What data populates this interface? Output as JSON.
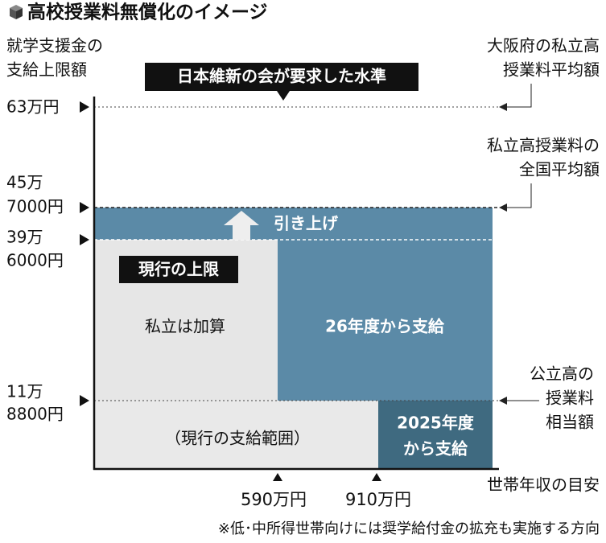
{
  "title": "高校授業料無償化のイメージ",
  "y_axis_label": [
    "就学支援金の",
    "支給上限額"
  ],
  "y_labels": [
    [
      "63万円"
    ],
    [
      "45万",
      "7000円"
    ],
    [
      "39万",
      "6000円"
    ],
    [
      "11万",
      "8800円"
    ]
  ],
  "right_notes": [
    [
      "大阪府の私立高",
      "授業料平均額"
    ],
    [
      "私立高授業料の",
      "全国平均額"
    ],
    [
      "公立高の",
      "授業料",
      "相当額"
    ]
  ],
  "banner": "日本維新の会が要求した水準",
  "raise_label": "引き上げ",
  "current_limit": "現行の上限",
  "regions": {
    "private_add": "私立は加算",
    "from_2026": "26年度から支給",
    "current_range": "（現行の支給範囲）",
    "from_2025": [
      "2025年度",
      "から支給"
    ]
  },
  "x_labels": [
    "590万円",
    "910万円"
  ],
  "x_axis_label": "世帯年収の目安",
  "footnote": "※低･中所得世帯向けには奨学給付金の拡充も実施する方向"
}
